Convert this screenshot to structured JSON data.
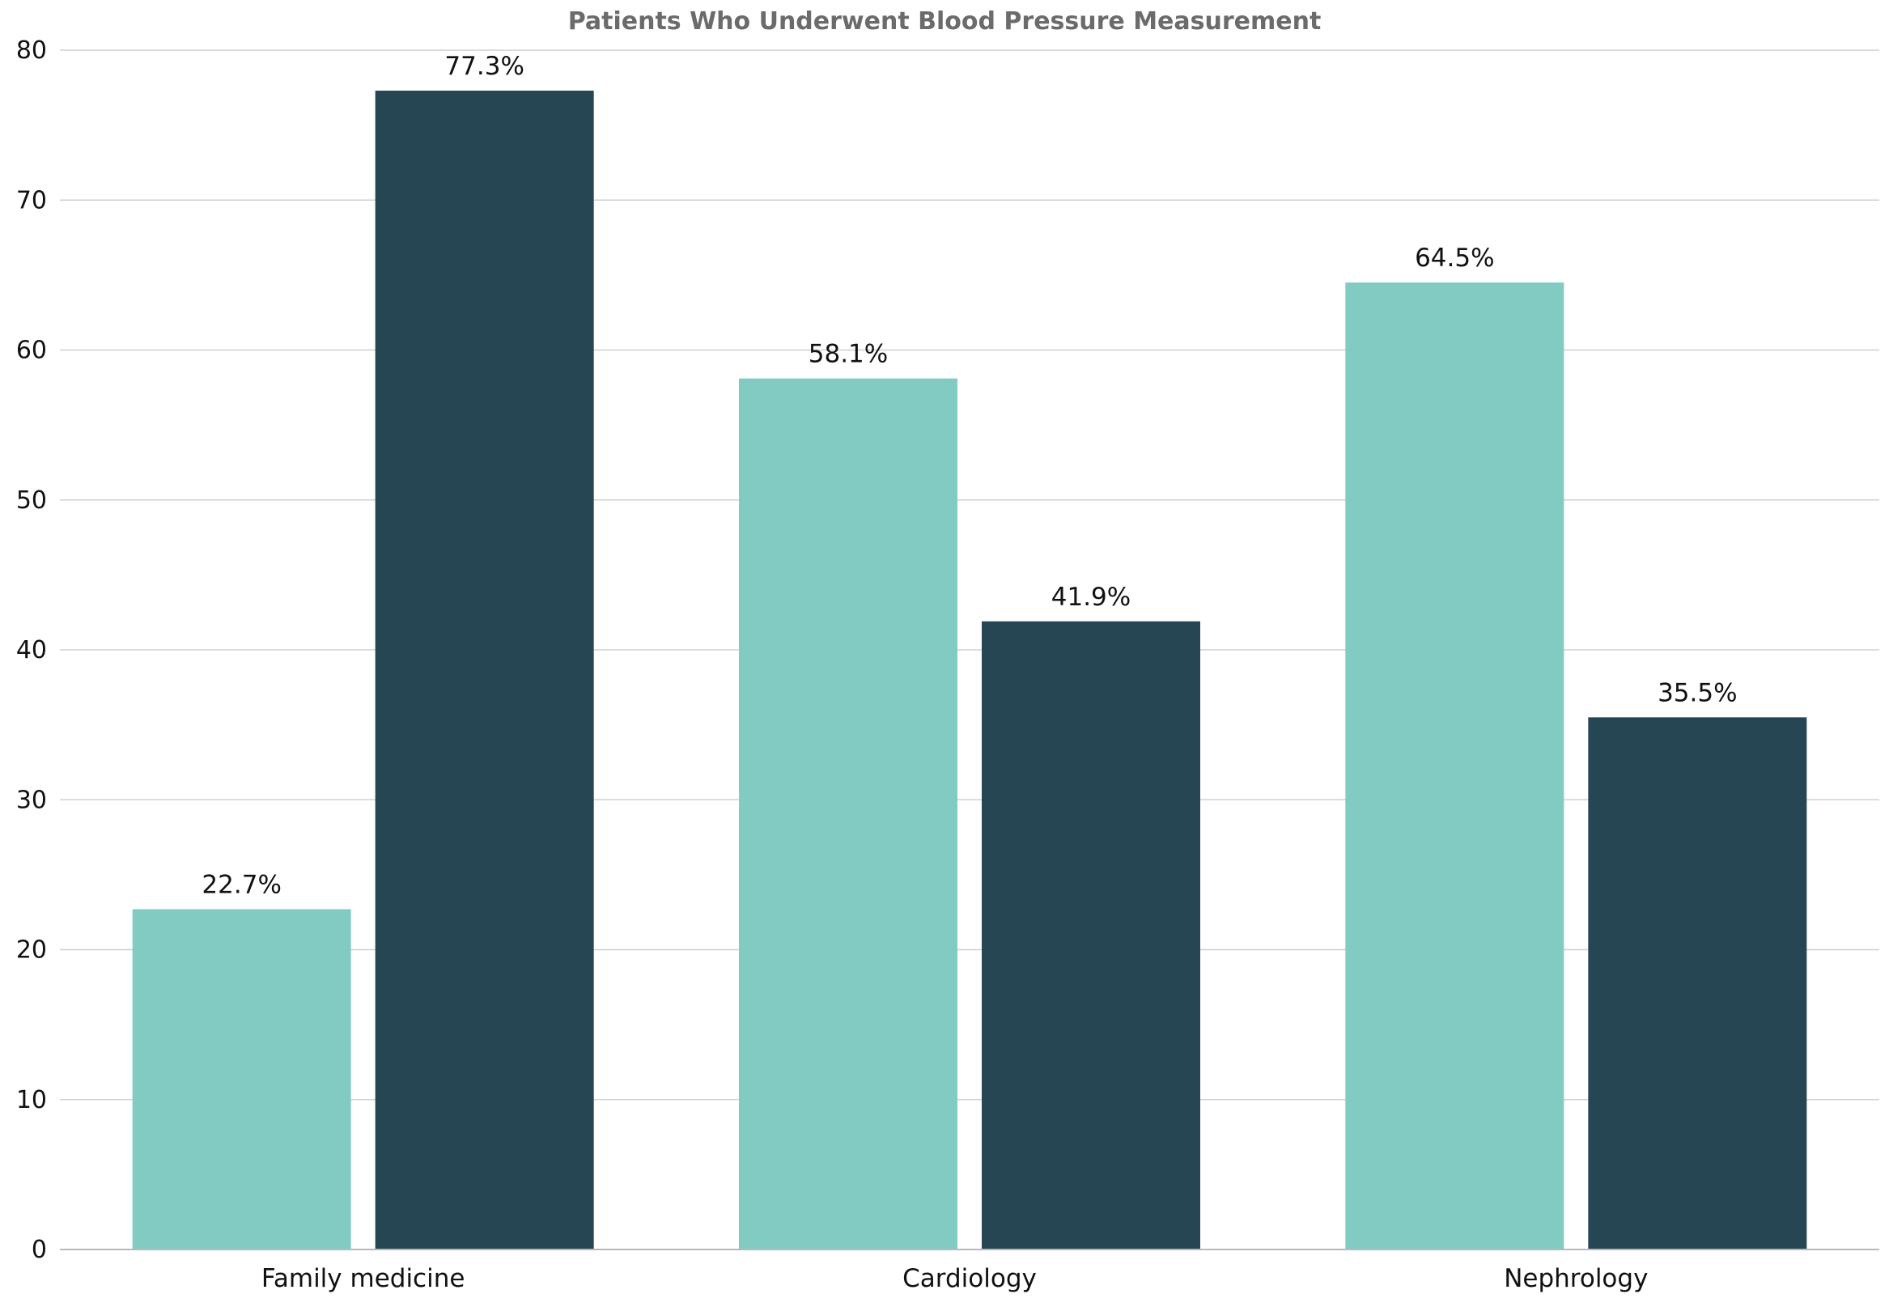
{
  "chart_data": {
    "type": "bar",
    "title": "Patients Who Underwent Blood Pressure Measurement",
    "xlabel": "",
    "ylabel": "",
    "ylim": [
      0,
      80
    ],
    "yticks": [
      0,
      10,
      20,
      30,
      40,
      50,
      60,
      70,
      80
    ],
    "grid": true,
    "legend": "none",
    "categories": [
      "Family medicine",
      "Cardiology",
      "Nephrology"
    ],
    "series": [
      {
        "values": [
          22.7,
          58.1,
          64.5
        ],
        "labels": [
          "22.7%",
          "58.1%",
          "64.5%"
        ],
        "color": "#82cbc3"
      },
      {
        "values": [
          77.3,
          41.9,
          35.5
        ],
        "labels": [
          "77.3%",
          "41.9%",
          "35.5%"
        ],
        "color": "#264653"
      }
    ]
  }
}
